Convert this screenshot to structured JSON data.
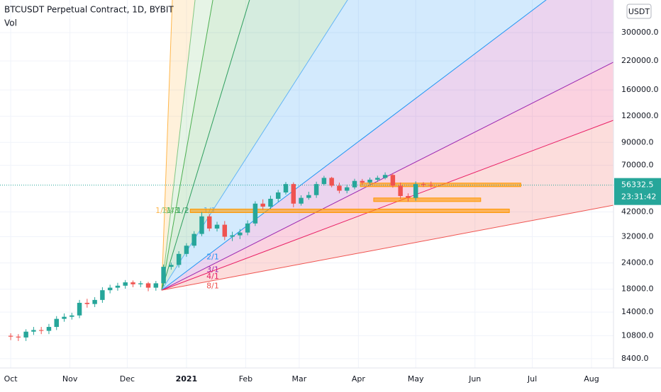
{
  "chart_data": {
    "type": "candlestick",
    "title": "BTCUSDT Perpetual Contract, 1D, BYBIT",
    "indicator": "Vol",
    "currency": "USDT",
    "log_scale": true,
    "xlim": [
      -5.6,
      315.5
    ],
    "xticks": [
      {
        "value": 0,
        "label": "Oct"
      },
      {
        "value": 31,
        "label": "Nov"
      },
      {
        "value": 61,
        "label": "Dec"
      },
      {
        "value": 92,
        "label": "2021"
      },
      {
        "value": 123,
        "label": "Feb"
      },
      {
        "value": 151,
        "label": "Mar"
      },
      {
        "value": 182,
        "label": "Apr"
      },
      {
        "value": 212,
        "label": "May"
      },
      {
        "value": 243,
        "label": "Jun"
      },
      {
        "value": 273,
        "label": "Jul"
      },
      {
        "value": 304,
        "label": "Aug"
      }
    ],
    "ylim": [
      7590,
      429000
    ],
    "yticks": [
      {
        "value": 300000,
        "label": "300000.0"
      },
      {
        "value": 220000,
        "label": "220000.0"
      },
      {
        "value": 160000,
        "label": "160000.0"
      },
      {
        "value": 120000,
        "label": "120000.0"
      },
      {
        "value": 90000,
        "label": "90000.0"
      },
      {
        "value": 70000,
        "label": "70000.0"
      },
      {
        "value": 42000,
        "label": "42000.0"
      },
      {
        "value": 32000,
        "label": "32000.0"
      },
      {
        "value": 24000,
        "label": "24000.0"
      },
      {
        "value": 18000,
        "label": "18000.0"
      },
      {
        "value": 14000,
        "label": "14000.0"
      },
      {
        "value": 10800,
        "label": "10800.0"
      },
      {
        "value": 8400,
        "label": "8400.0"
      }
    ],
    "up_color": "#26a69a",
    "down_color": "#ef5350",
    "last_price": 56332.5,
    "countdown": "23:31:42",
    "candles": {
      "x": [
        0,
        4,
        8,
        12,
        16,
        20,
        24,
        28,
        32,
        36,
        40,
        44,
        48,
        52,
        56,
        60,
        64,
        68,
        72,
        76,
        80,
        84,
        88,
        92,
        96,
        100,
        104,
        108,
        112,
        116,
        120,
        124,
        128,
        132,
        136,
        140,
        144,
        148,
        152,
        156,
        160,
        164,
        168,
        172,
        176,
        180,
        184,
        188,
        192,
        196,
        200,
        204,
        208,
        212,
        216,
        220
      ],
      "open": [
        10800,
        10700,
        10600,
        11300,
        11500,
        11400,
        11900,
        13000,
        13300,
        13500,
        15500,
        15300,
        16000,
        17800,
        18300,
        18700,
        19400,
        19000,
        19200,
        18300,
        19200,
        23000,
        23500,
        26500,
        29000,
        33000,
        40000,
        35000,
        36500,
        32000,
        32500,
        33500,
        37000,
        46000,
        44500,
        48500,
        52000,
        57000,
        46000,
        49000,
        50500,
        57000,
        61000,
        56000,
        53000,
        55000,
        59000,
        58000,
        59800,
        61000,
        63000,
        56000,
        50000,
        49000,
        57000,
        56500
      ],
      "high": [
        11100,
        11000,
        11600,
        11900,
        11900,
        12300,
        13400,
        13800,
        13900,
        16000,
        16200,
        16500,
        18400,
        18900,
        19300,
        19900,
        19800,
        19700,
        19500,
        19700,
        23600,
        24100,
        27300,
        29800,
        34000,
        41900,
        41000,
        37700,
        38000,
        33800,
        34800,
        38300,
        47200,
        48200,
        50200,
        53500,
        58300,
        58100,
        50400,
        52400,
        58500,
        62400,
        61700,
        57900,
        56700,
        60400,
        60300,
        61200,
        62500,
        64800,
        64200,
        58000,
        51500,
        58700,
        58200,
        58600
      ],
      "low": [
        10300,
        10200,
        10200,
        10900,
        11000,
        11000,
        11500,
        12600,
        12900,
        13100,
        14700,
        14800,
        15500,
        17200,
        17700,
        18100,
        18400,
        18400,
        17600,
        17700,
        18600,
        22300,
        22800,
        25700,
        28300,
        32200,
        34000,
        33900,
        30800,
        30500,
        31200,
        32500,
        36000,
        43000,
        43400,
        47000,
        50800,
        44200,
        45000,
        48000,
        49000,
        56000,
        55000,
        51500,
        51500,
        53800,
        56500,
        56800,
        58400,
        60000,
        54800,
        48500,
        47000,
        47500,
        55200,
        54800
      ],
      "close": [
        10700,
        10600,
        11300,
        11500,
        11400,
        11900,
        13000,
        13300,
        13500,
        15500,
        15300,
        16000,
        17800,
        18300,
        18700,
        19400,
        19000,
        19200,
        18300,
        19200,
        23000,
        23500,
        26500,
        29000,
        33000,
        40000,
        35000,
        36500,
        32000,
        32500,
        33500,
        37000,
        46000,
        44500,
        48500,
        52000,
        57000,
        46000,
        49000,
        50500,
        57000,
        61000,
        56000,
        53000,
        55000,
        59000,
        58000,
        59800,
        61000,
        63000,
        56000,
        50000,
        49000,
        57000,
        56500,
        56300
      ]
    },
    "fan": {
      "origin": {
        "day": 79,
        "price": 17800
      },
      "lines": [
        {
          "label": "1/8",
          "day": 84.6,
          "price": 429000,
          "color": "#ffb74d"
        },
        {
          "label": "1/4",
          "day": 96.5,
          "price": 429000,
          "color": "#81c784"
        },
        {
          "label": "1/3",
          "day": 105.8,
          "price": 429000,
          "color": "#4caf50"
        },
        {
          "label": "1/2",
          "day": 125,
          "price": 429000,
          "color": "#2e9e5e"
        },
        {
          "label": "1/1",
          "day": 176.3,
          "price": 429000,
          "color": "#64b5f6"
        },
        {
          "label": "2/1",
          "day": 280.2,
          "price": 429000,
          "color": "#2196f3"
        },
        {
          "label": "3/1",
          "day": 315.5,
          "price": 217000,
          "color": "#9c27b0"
        },
        {
          "label": "4/1",
          "day": 315.5,
          "price": 114800,
          "color": "#e91e63"
        },
        {
          "label": "8/1",
          "day": 315.5,
          "price": 45200,
          "color": "#ef5350"
        }
      ]
    },
    "zones": [
      {
        "price": 56500,
        "from": 183,
        "to": 267,
        "color": "#ff9800"
      },
      {
        "price": 48000,
        "from": 190,
        "to": 246,
        "color": "#ff9800"
      },
      {
        "price": 42500,
        "from": 94,
        "to": 261,
        "color": "#ff9800"
      }
    ]
  }
}
